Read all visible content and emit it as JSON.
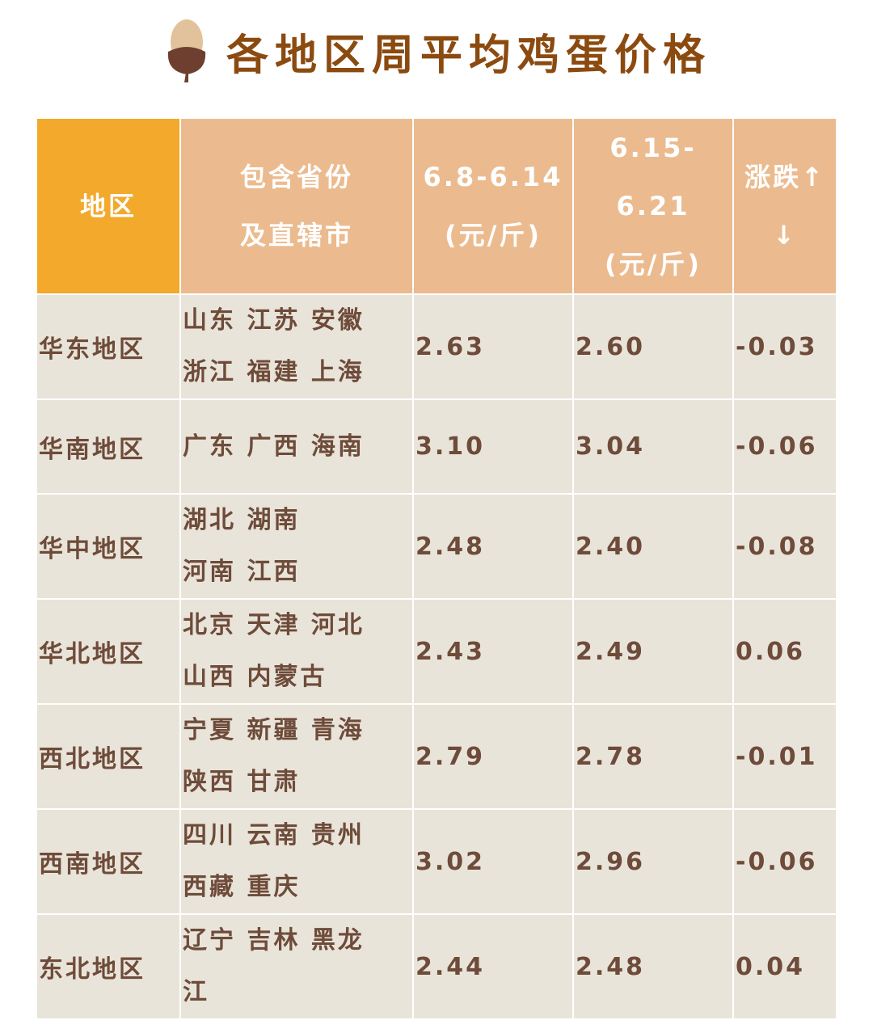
{
  "title": "各地区周平均鸡蛋价格",
  "icon": "acorn-icon",
  "colors": {
    "title": "#8b4a0f",
    "header_first": "#f2a92c",
    "header": "#ebbb8f",
    "body": "#e9e4d9",
    "text": "#6e4b3a"
  },
  "headers": [
    "地区",
    "包含省份\n及直辖市",
    "6.8-6.14\n(元/斤)",
    "6.15-6.21\n(元/斤)",
    "涨跌↑\n↓"
  ],
  "rows": [
    [
      "华东地区",
      "山东  江苏  安徽\n浙江  福建  上海",
      "2.63",
      "2.60",
      "-0.03"
    ],
    [
      "华南地区",
      "广东  广西  海南",
      "3.10",
      "3.04",
      "-0.06"
    ],
    [
      "华中地区",
      "湖北  湖南\n河南  江西",
      "2.48",
      "2.40",
      "-0.08"
    ],
    [
      "华北地区",
      "北京  天津  河北\n山西  内蒙古",
      "2.43",
      "2.49",
      "0.06"
    ],
    [
      "西北地区",
      "宁夏  新疆  青海\n陕西  甘肃",
      "2.79",
      "2.78",
      "-0.01"
    ],
    [
      "西南地区",
      "四川  云南  贵州\n西藏  重庆",
      "3.02",
      "2.96",
      "-0.06"
    ],
    [
      "东北地区",
      "辽宁  吉林  黑龙\n江",
      "2.44",
      "2.48",
      "0.04"
    ]
  ]
}
